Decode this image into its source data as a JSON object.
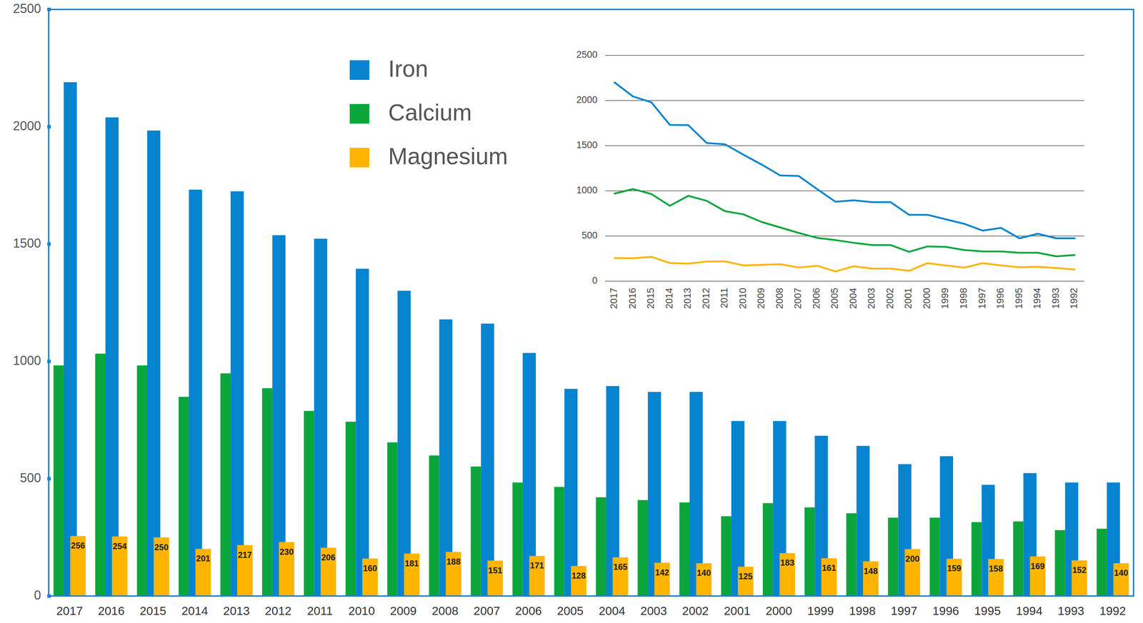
{
  "chart_data": [
    {
      "type": "bar",
      "categories": [
        "2017",
        "2016",
        "2015",
        "2014",
        "2013",
        "2012",
        "2011",
        "2010",
        "2009",
        "2008",
        "2007",
        "2006",
        "2005",
        "2004",
        "2003",
        "2002",
        "2001",
        "2000",
        "1999",
        "1998",
        "1997",
        "1996",
        "1995",
        "1994",
        "1993",
        "1992"
      ],
      "series": [
        {
          "name": "Iron",
          "color": "#0784cf",
          "values": [
            2190,
            2040,
            1984,
            1732,
            1725,
            1538,
            1523,
            1395,
            1301,
            1179,
            1161,
            1036,
            883,
            895,
            870,
            870,
            746,
            746,
            683,
            640,
            562,
            596,
            474,
            524,
            484,
            484
          ]
        },
        {
          "name": "Calcium",
          "color": "#0ba63b",
          "values": [
            983,
            1033,
            983,
            849,
            949,
            886,
            789,
            743,
            655,
            599,
            552,
            484,
            465,
            421,
            409,
            399,
            340,
            396,
            378,
            353,
            334,
            334,
            315,
            318,
            281,
            287
          ]
        },
        {
          "name": "Magnesium",
          "color": "#ffb400",
          "data_labels": true,
          "values": [
            256,
            254,
            250,
            201,
            217,
            230,
            206,
            160,
            181,
            188,
            151,
            171,
            128,
            165,
            142,
            140,
            125,
            183,
            161,
            148,
            200,
            159,
            158,
            169,
            152,
            140
          ]
        }
      ],
      "ylim": [
        0,
        2500
      ],
      "yticks": [
        0,
        500,
        1000,
        1500,
        2000,
        2500
      ],
      "grid": false,
      "legend": "top"
    },
    {
      "type": "line",
      "categories": [
        "2017",
        "2016",
        "2015",
        "2014",
        "2013",
        "2012",
        "2011",
        "2010",
        "2009",
        "2008",
        "2007",
        "2006",
        "2005",
        "2004",
        "2003",
        "2002",
        "2001",
        "2000",
        "1999",
        "1998",
        "1997",
        "1996",
        "1995",
        "1994",
        "1993",
        "1992"
      ],
      "series": [
        {
          "color": "#0784cf",
          "values": [
            2200,
            2045,
            1980,
            1730,
            1728,
            1530,
            1515,
            1400,
            1290,
            1170,
            1165,
            1020,
            880,
            895,
            875,
            875,
            735,
            735,
            685,
            635,
            560,
            590,
            475,
            525,
            475,
            475
          ]
        },
        {
          "color": "#0ba63b",
          "values": [
            970,
            1020,
            965,
            835,
            945,
            890,
            775,
            740,
            655,
            595,
            535,
            480,
            455,
            425,
            400,
            400,
            325,
            385,
            380,
            345,
            330,
            330,
            315,
            315,
            275,
            290
          ]
        },
        {
          "color": "#ffb400",
          "values": [
            256,
            254,
            270,
            201,
            195,
            217,
            220,
            175,
            181,
            188,
            151,
            171,
            108,
            165,
            140,
            140,
            115,
            200,
            175,
            150,
            200,
            175,
            155,
            160,
            145,
            130
          ]
        }
      ],
      "ylim": [
        0,
        2500
      ],
      "yticks": [
        0,
        500,
        1000,
        1500,
        2000,
        2500
      ],
      "grid": true
    }
  ]
}
